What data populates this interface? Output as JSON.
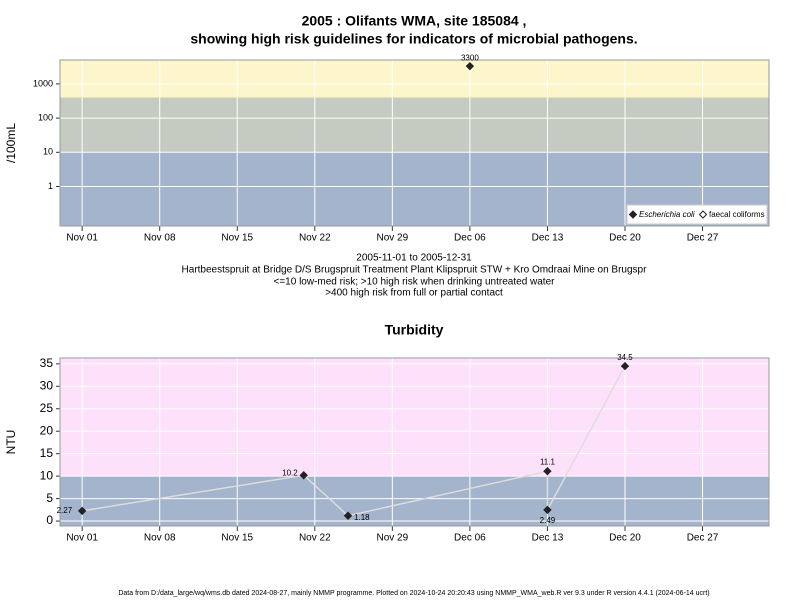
{
  "chart_data": [
    {
      "type": "scatter",
      "title": [
        "2005 : Olifants WMA, site 185084 ,",
        "showing high risk guidelines for indicators of microbial pathogens."
      ],
      "subtitle": [
        "2005-11-01 to 2005-12-31",
        "Hartbeestspruit at Bridge D/S Brugspruit Treatment Plant Klipspruit STW + Kro Omdraai Mine on Brugspr",
        "<=10 low-med risk; >10 high risk when drinking untreated water",
        ">400 high risk from full or partial contact"
      ],
      "ylabel": "/100mL",
      "log_y": true,
      "ylim": [
        0.07,
        5000
      ],
      "yticks": [
        1,
        10,
        100,
        1000
      ],
      "xlim": [
        "2005-10-30",
        "2006-01-02"
      ],
      "xticks": [
        {
          "value": "2005-11-01",
          "label": "Nov 01"
        },
        {
          "value": "2005-11-08",
          "label": "Nov 08"
        },
        {
          "value": "2005-11-15",
          "label": "Nov 15"
        },
        {
          "value": "2005-11-22",
          "label": "Nov 22"
        },
        {
          "value": "2005-11-29",
          "label": "Nov 29"
        },
        {
          "value": "2005-12-06",
          "label": "Dec 06"
        },
        {
          "value": "2005-12-13",
          "label": "Dec 13"
        },
        {
          "value": "2005-12-20",
          "label": "Dec 20"
        },
        {
          "value": "2005-12-27",
          "label": "Dec 27"
        }
      ],
      "bands": [
        {
          "from": 0.07,
          "to": 10,
          "color": "#a3b4cc"
        },
        {
          "from": 10,
          "to": 400,
          "color": "#c5cbc1"
        },
        {
          "from": 400,
          "to": 5000,
          "color": "#fdf6cc"
        }
      ],
      "grid": true,
      "legend": "bottom-right",
      "series": [
        {
          "name": "Escherichia coli",
          "color": "#222222",
          "marker": "filled",
          "x": [
            "2005-12-06"
          ],
          "values": [
            3300
          ]
        },
        {
          "name": "faecal coliforms",
          "color": "#222222",
          "marker": "open",
          "x": [],
          "values": []
        }
      ]
    },
    {
      "type": "line",
      "title": "Turbidity",
      "ylabel": "NTU",
      "log_y": false,
      "ylim": [
        -1.1,
        36.3
      ],
      "yticks": [
        0,
        5,
        10,
        15,
        20,
        25,
        30,
        35
      ],
      "xlim": [
        "2005-10-30",
        "2006-01-02"
      ],
      "xticks": [
        {
          "value": "2005-11-01",
          "label": "Nov 01"
        },
        {
          "value": "2005-11-08",
          "label": "Nov 08"
        },
        {
          "value": "2005-11-15",
          "label": "Nov 15"
        },
        {
          "value": "2005-11-22",
          "label": "Nov 22"
        },
        {
          "value": "2005-11-29",
          "label": "Nov 29"
        },
        {
          "value": "2005-12-06",
          "label": "Dec 06"
        },
        {
          "value": "2005-12-13",
          "label": "Dec 13"
        },
        {
          "value": "2005-12-20",
          "label": "Dec 20"
        },
        {
          "value": "2005-12-27",
          "label": "Dec 27"
        }
      ],
      "bands": [
        {
          "from": -1.1,
          "to": 10,
          "color": "#a3b4cc"
        },
        {
          "from": 10,
          "to": 36.3,
          "color": "#fde1fb"
        }
      ],
      "grid": true,
      "series": [
        {
          "name": "Turbidity",
          "color": "#dddddd",
          "marker_color": "#222222",
          "x": [
            "2005-11-01",
            "2005-11-21",
            "2005-11-25",
            "2005-12-13",
            "2005-12-13",
            "2005-12-20"
          ],
          "values": [
            2.27,
            10.2,
            1.18,
            11.1,
            2.49,
            34.5
          ]
        }
      ]
    }
  ],
  "footer": "Data from D:/data_large/wq/wms.db dated 2024-08-27, mainly NMMP programme. Plotted on 2024-10-24 20:20:43 using NMMP_WMA_web.R ver 9.3 under R version 4.4.1 (2024-06-14 ucrt)"
}
